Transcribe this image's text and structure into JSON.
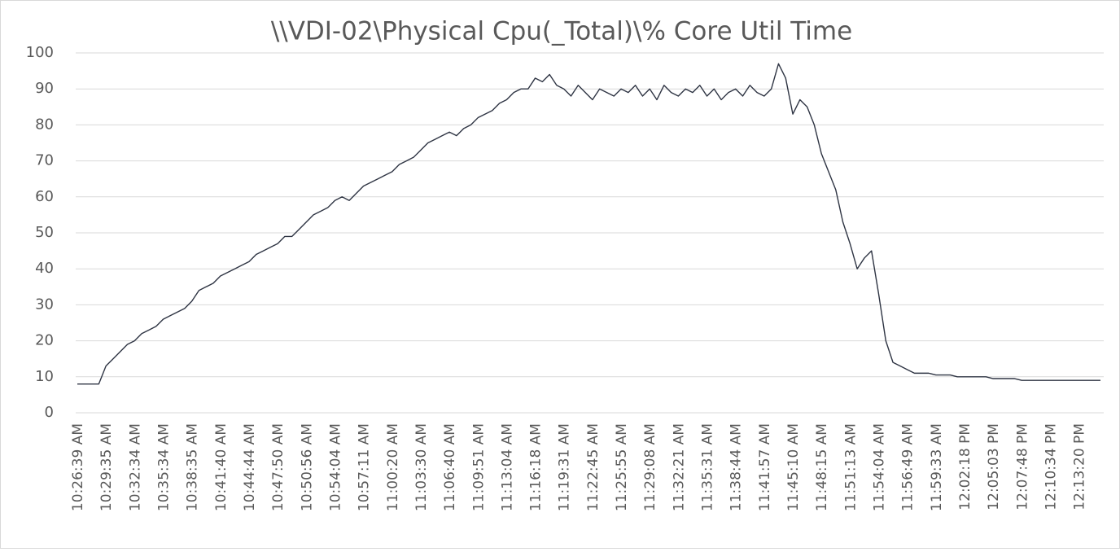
{
  "chart_data": {
    "type": "line",
    "title": "\\\\VDI-02\\Physical Cpu(_Total)\\% Core Util Time",
    "categories": [
      "10:26:39 AM",
      null,
      null,
      null,
      "10:29:35 AM",
      null,
      null,
      null,
      "10:32:34 AM",
      null,
      null,
      null,
      "10:35:34 AM",
      null,
      null,
      null,
      "10:38:35 AM",
      null,
      null,
      null,
      "10:41:40 AM",
      null,
      null,
      null,
      "10:44:44 AM",
      null,
      null,
      null,
      "10:47:50 AM",
      null,
      null,
      null,
      "10:50:56 AM",
      null,
      null,
      null,
      "10:54:04 AM",
      null,
      null,
      null,
      "10:57:11 AM",
      null,
      null,
      null,
      "11:00:20 AM",
      null,
      null,
      null,
      "11:03:30 AM",
      null,
      null,
      null,
      "11:06:40 AM",
      null,
      null,
      null,
      "11:09:51 AM",
      null,
      null,
      null,
      "11:13:04 AM",
      null,
      null,
      null,
      "11:16:18 AM",
      null,
      null,
      null,
      "11:19:31 AM",
      null,
      null,
      null,
      "11:22:45 AM",
      null,
      null,
      null,
      "11:25:55 AM",
      null,
      null,
      null,
      "11:29:08 AM",
      null,
      null,
      null,
      "11:32:21 AM",
      null,
      null,
      null,
      "11:35:31 AM",
      null,
      null,
      null,
      "11:38:44 AM",
      null,
      null,
      null,
      "11:41:57 AM",
      null,
      null,
      null,
      "11:45:10 AM",
      null,
      null,
      null,
      "11:48:15 AM",
      null,
      null,
      null,
      "11:51:13 AM",
      null,
      null,
      null,
      "11:54:04 AM",
      null,
      null,
      null,
      "11:56:49 AM",
      null,
      null,
      null,
      "11:59:33 AM",
      null,
      null,
      null,
      "12:02:18 PM",
      null,
      null,
      null,
      "12:05:03 PM",
      null,
      null,
      null,
      "12:07:48 PM",
      null,
      null,
      null,
      "12:10:34 PM",
      null,
      null,
      null,
      "12:13:20 PM",
      null,
      null,
      null
    ],
    "series": [
      {
        "color": "#2e3443",
        "values": [
          8,
          8,
          8,
          8,
          13,
          15,
          17,
          19,
          20,
          22,
          23,
          24,
          26,
          27,
          28,
          29,
          31,
          34,
          35,
          36,
          38,
          39,
          40,
          41,
          42,
          44,
          45,
          46,
          47,
          49,
          49,
          51,
          53,
          55,
          56,
          57,
          59,
          60,
          59,
          61,
          63,
          64,
          65,
          66,
          67,
          69,
          70,
          71,
          73,
          75,
          76,
          77,
          78,
          77,
          79,
          80,
          82,
          83,
          84,
          86,
          87,
          89,
          90,
          90,
          93,
          92,
          94,
          91,
          90,
          88,
          91,
          89,
          87,
          90,
          89,
          88,
          90,
          89,
          91,
          88,
          90,
          87,
          91,
          89,
          88,
          90,
          89,
          91,
          88,
          90,
          87,
          89,
          90,
          88,
          91,
          89,
          88,
          90,
          97,
          93,
          83,
          87,
          85,
          80,
          72,
          67,
          62,
          53,
          47,
          40,
          43,
          45,
          33,
          20,
          14,
          13,
          12,
          11,
          11,
          11,
          10.5,
          10.5,
          10.5,
          10,
          10,
          10,
          10,
          10,
          9.5,
          9.5,
          9.5,
          9.5,
          9,
          9,
          9,
          9,
          9,
          9,
          9,
          9,
          9,
          9,
          9,
          9
        ]
      }
    ],
    "ylim": [
      0,
      100
    ],
    "yticks": [
      0,
      10,
      20,
      30,
      40,
      50,
      60,
      70,
      80,
      90,
      100
    ],
    "grid": true
  }
}
